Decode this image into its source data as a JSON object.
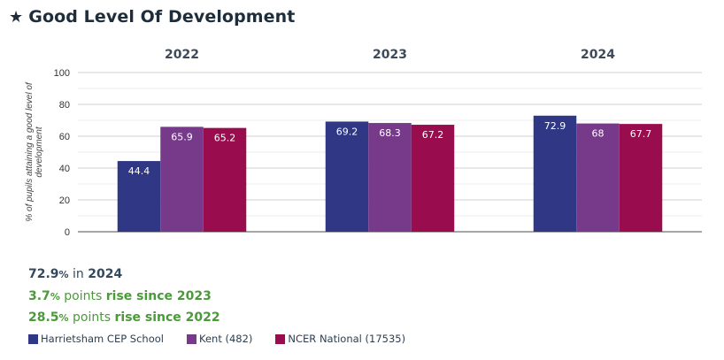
{
  "header": {
    "icon": "star-icon",
    "star_glyph": "★",
    "title": "Good Level Of Development"
  },
  "summary": [
    {
      "value": "72.9",
      "unit": "%",
      "text": " in ",
      "bold_tail": "2024"
    },
    {
      "value": "3.7",
      "unit": "%",
      "text": " points ",
      "bold_tail": "rise since 2023"
    },
    {
      "value": "28.5",
      "unit": "%",
      "text": " points ",
      "bold_tail": "rise since 2022"
    }
  ],
  "colors": {
    "title": "#1e2d3b",
    "summary_neutral": "#34495e",
    "summary_positive": "#4a9a3a"
  },
  "chart_data": {
    "type": "bar",
    "title": "Good Level Of Development",
    "categories": [
      "2022",
      "2023",
      "2024"
    ],
    "ylabel": "% of pupils attaining a good level of development",
    "xlabel": "",
    "ylim": [
      0,
      100
    ],
    "yticks": [
      0,
      20,
      40,
      60,
      80,
      100
    ],
    "minor_gridlines": [
      10,
      30,
      50,
      70,
      90
    ],
    "grid": true,
    "legend_position": "bottom-left",
    "series": [
      {
        "name": "Harrietsham CEP School",
        "color": "#303785",
        "values": [
          44.4,
          69.2,
          72.9
        ],
        "labels": [
          "44.4",
          "69.2",
          "72.9"
        ]
      },
      {
        "name": "Kent (482)",
        "color": "#77398a",
        "values": [
          65.9,
          68.3,
          68
        ],
        "labels": [
          "65.9",
          "68.3",
          "68"
        ]
      },
      {
        "name": "NCER National (17535)",
        "color": "#990c4d",
        "values": [
          65.2,
          67.2,
          67.7
        ],
        "labels": [
          "65.2",
          "67.2",
          "67.7"
        ]
      }
    ]
  }
}
